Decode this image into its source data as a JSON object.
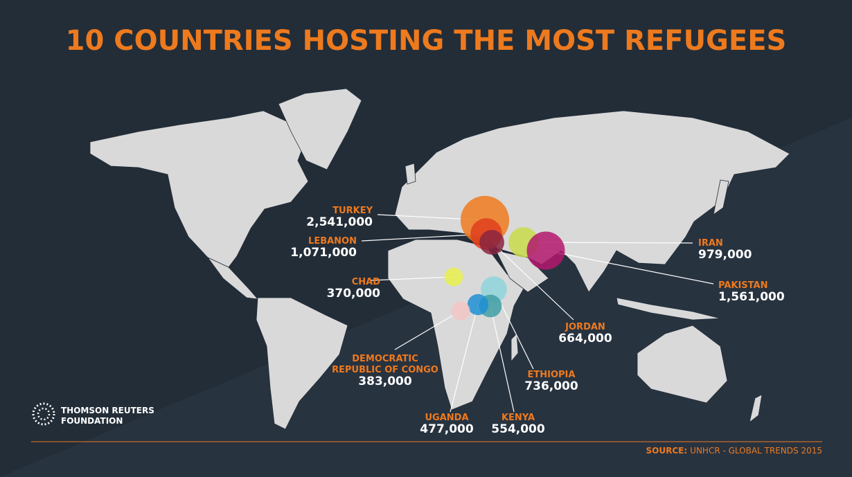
{
  "title": "10 COUNTRIES HOSTING THE MOST REFUGEES",
  "countries": [
    {
      "name": [
        "TURKEY"
      ],
      "value": 2541000,
      "label": "2,541,000",
      "color": "#ee7a1e"
    },
    {
      "name": [
        "LEBANON"
      ],
      "value": 1071000,
      "label": "1,071,000",
      "color": "#e0401e"
    },
    {
      "name": [
        "JORDAN"
      ],
      "value": 664000,
      "label": "664,000",
      "color": "#8a2440"
    },
    {
      "name": [
        "IRAN"
      ],
      "value": 979000,
      "label": "979,000",
      "color": "#c8da4a"
    },
    {
      "name": [
        "PAKISTAN"
      ],
      "value": 1561000,
      "label": "1,561,000",
      "color": "#b3196f"
    },
    {
      "name": [
        "CHAD"
      ],
      "value": 370000,
      "label": "370,000",
      "color": "#e8f04e"
    },
    {
      "name": [
        "ETHIOPIA"
      ],
      "value": 736000,
      "label": "736,000",
      "color": "#8fd3dc"
    },
    {
      "name": [
        "KENYA"
      ],
      "value": 554000,
      "label": "554,000",
      "color": "#3f9fa3"
    },
    {
      "name": [
        "UGANDA"
      ],
      "value": 477000,
      "label": "477,000",
      "color": "#1e8fd3"
    },
    {
      "name": [
        "DEMOCRATIC",
        "REPUBLIC OF CONGO"
      ],
      "value": 383000,
      "label": "383,000",
      "color": "#f2c4c4"
    }
  ],
  "logo": [
    "THOMSON REUTERS",
    "FOUNDATION"
  ],
  "source": {
    "prefix": "SOURCE:",
    "text": "UNHCR - GLOBAL TRENDS 2015"
  }
}
